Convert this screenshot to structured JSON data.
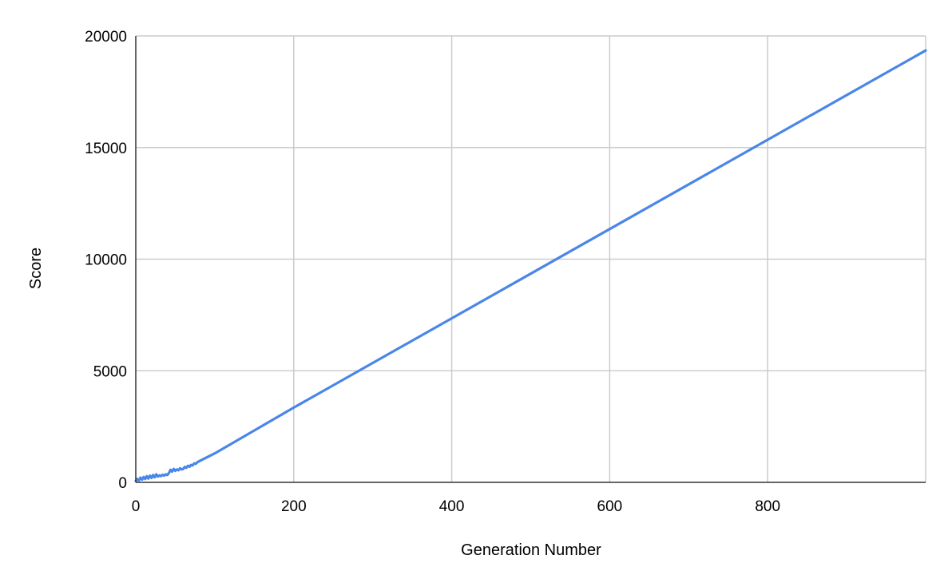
{
  "chart_data": {
    "type": "line",
    "title": "",
    "xlabel": "Generation Number",
    "ylabel": "Score",
    "xlim": [
      0,
      1000
    ],
    "ylim": [
      0,
      20000
    ],
    "x_ticks": [
      0,
      200,
      400,
      600,
      800
    ],
    "y_ticks": [
      0,
      5000,
      10000,
      15000,
      20000
    ],
    "grid": true,
    "legend": "none",
    "series": [
      {
        "color": "#4a86e8",
        "points": [
          [
            0,
            60
          ],
          [
            2,
            150
          ],
          [
            4,
            90
          ],
          [
            6,
            210
          ],
          [
            8,
            120
          ],
          [
            10,
            240
          ],
          [
            12,
            150
          ],
          [
            14,
            280
          ],
          [
            16,
            170
          ],
          [
            18,
            300
          ],
          [
            20,
            200
          ],
          [
            22,
            330
          ],
          [
            24,
            230
          ],
          [
            26,
            360
          ],
          [
            28,
            260
          ],
          [
            30,
            310
          ],
          [
            32,
            280
          ],
          [
            34,
            340
          ],
          [
            36,
            300
          ],
          [
            38,
            360
          ],
          [
            40,
            330
          ],
          [
            42,
            420
          ],
          [
            44,
            560
          ],
          [
            46,
            480
          ],
          [
            48,
            600
          ],
          [
            50,
            520
          ],
          [
            52,
            580
          ],
          [
            54,
            540
          ],
          [
            56,
            630
          ],
          [
            58,
            580
          ],
          [
            60,
            600
          ],
          [
            62,
            690
          ],
          [
            64,
            650
          ],
          [
            66,
            740
          ],
          [
            68,
            700
          ],
          [
            70,
            780
          ],
          [
            72,
            760
          ],
          [
            74,
            850
          ],
          [
            76,
            830
          ],
          [
            78,
            900
          ],
          [
            80,
            940
          ],
          [
            100,
            1300
          ],
          [
            200,
            3350
          ],
          [
            400,
            7350
          ],
          [
            600,
            11350
          ],
          [
            800,
            15350
          ],
          [
            1000,
            19350
          ]
        ]
      }
    ]
  }
}
